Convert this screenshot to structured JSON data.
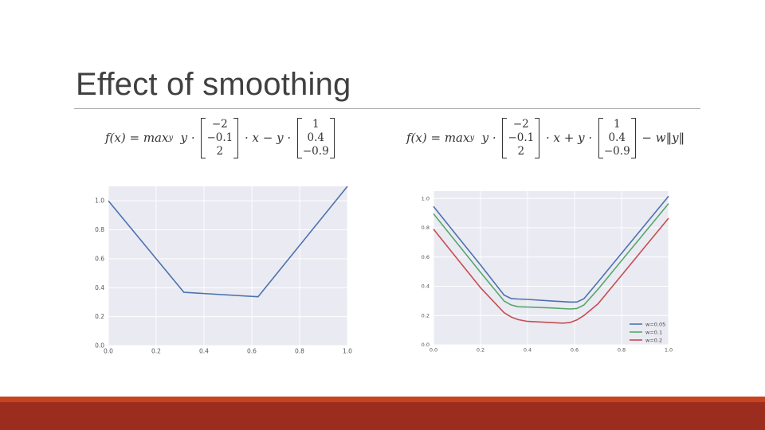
{
  "slide": {
    "title": "Effect of smoothing"
  },
  "formula_left": {
    "prefix": "f(x) = max",
    "sub": "y",
    "mid1": "  y · ",
    "vec1": [
      "−2",
      "−0.1",
      "2"
    ],
    "mid2": " · x − y · ",
    "vec2": [
      "1",
      "0.4",
      "−0.9"
    ],
    "suffix": ""
  },
  "formula_right": {
    "prefix": "f(x) = max",
    "sub": "y",
    "mid1": "  y · ",
    "vec1": [
      "−2",
      "−0.1",
      "2"
    ],
    "mid2": " · x + y · ",
    "vec2": [
      "1",
      "0.4",
      "−0.9"
    ],
    "suffix": " − w‖y‖"
  },
  "chart_data": [
    {
      "type": "line",
      "xlim": [
        0,
        1.0
      ],
      "ylim": [
        0,
        1.1
      ],
      "xticks": [
        "0.0",
        "0.2",
        "0.4",
        "0.6",
        "0.8",
        "1.0"
      ],
      "yticks": [
        "0.0",
        "0.2",
        "0.4",
        "0.6",
        "0.8",
        "1.0"
      ],
      "grid": true,
      "series": [
        {
          "color": "#4c72b0",
          "x": [
            0.0,
            0.316,
            0.626,
            1.0
          ],
          "y": [
            1.0,
            0.368,
            0.337,
            1.1
          ]
        }
      ]
    },
    {
      "type": "line",
      "xlim": [
        0,
        1.0
      ],
      "ylim": [
        0,
        1.05
      ],
      "xticks": [
        "0.0",
        "0.2",
        "0.4",
        "0.6",
        "0.8",
        "1.0"
      ],
      "yticks": [
        "0.0",
        "0.2",
        "0.4",
        "0.6",
        "0.8",
        "1.0"
      ],
      "grid": true,
      "legend": "bottom-right",
      "series": [
        {
          "name": "w=0.05",
          "color": "#4c72b0",
          "x": [
            0.0,
            0.1,
            0.2,
            0.3,
            0.33,
            0.36,
            0.4,
            0.5,
            0.58,
            0.61,
            0.64,
            0.7,
            0.8,
            0.9,
            1.0
          ],
          "y": [
            0.945,
            0.745,
            0.545,
            0.34,
            0.316,
            0.313,
            0.31,
            0.3,
            0.292,
            0.292,
            0.315,
            0.43,
            0.625,
            0.82,
            1.015
          ]
        },
        {
          "name": "w=0.1",
          "color": "#55a868",
          "x": [
            0.0,
            0.1,
            0.2,
            0.3,
            0.33,
            0.36,
            0.4,
            0.5,
            0.58,
            0.61,
            0.64,
            0.7,
            0.8,
            0.9,
            1.0
          ],
          "y": [
            0.895,
            0.695,
            0.495,
            0.3,
            0.272,
            0.26,
            0.258,
            0.252,
            0.245,
            0.248,
            0.272,
            0.38,
            0.575,
            0.77,
            0.965
          ]
        },
        {
          "name": "w=0.2",
          "color": "#c44e52",
          "x": [
            0.0,
            0.1,
            0.2,
            0.3,
            0.33,
            0.36,
            0.4,
            0.5,
            0.55,
            0.58,
            0.61,
            0.64,
            0.7,
            0.8,
            0.9,
            1.0
          ],
          "y": [
            0.79,
            0.59,
            0.39,
            0.22,
            0.19,
            0.172,
            0.16,
            0.152,
            0.148,
            0.152,
            0.17,
            0.2,
            0.28,
            0.475,
            0.67,
            0.865
          ]
        }
      ]
    }
  ]
}
